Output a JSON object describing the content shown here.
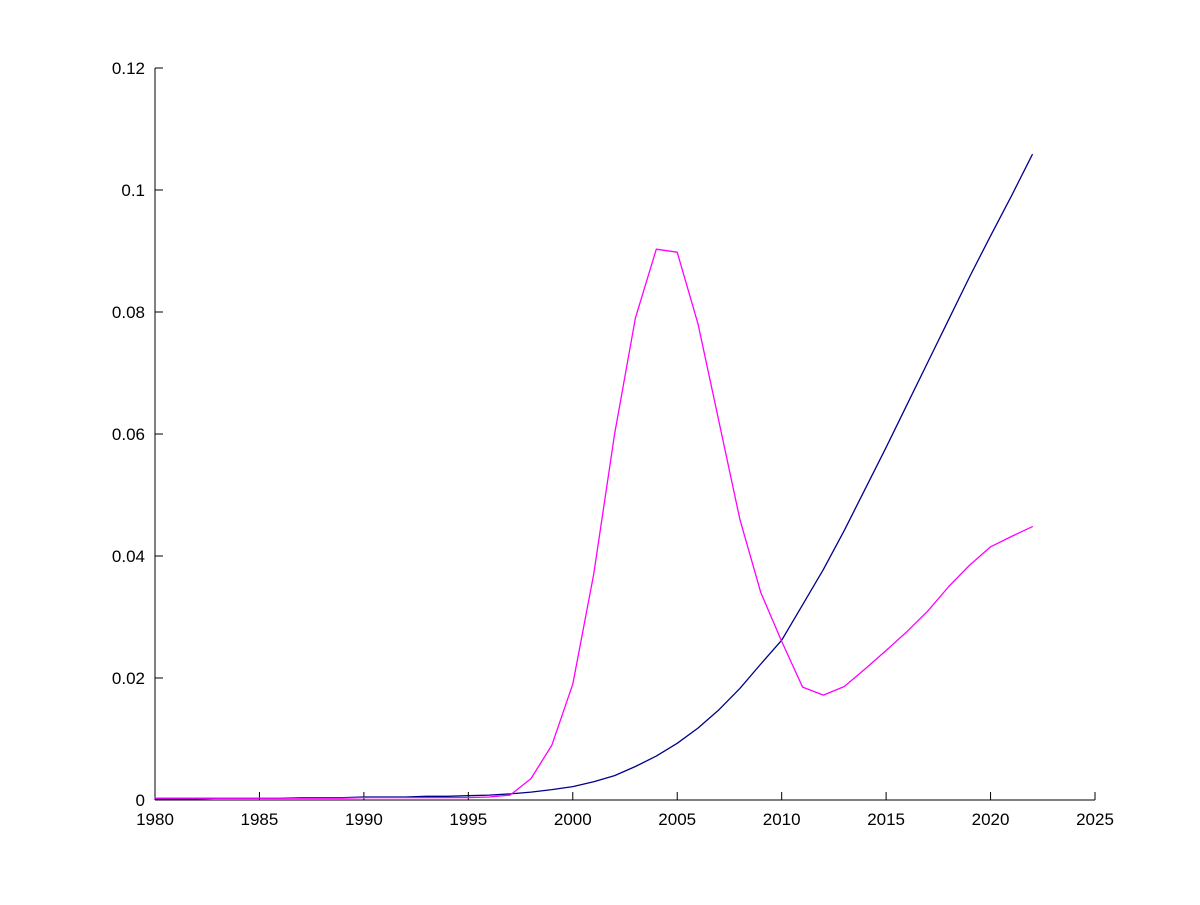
{
  "figure": {
    "background": "#ffffff",
    "axis_color": "#000000"
  },
  "chart_data": {
    "type": "line",
    "title": "",
    "xlabel": "",
    "ylabel": "",
    "grid": false,
    "legend": null,
    "xlim": [
      1980,
      2025
    ],
    "ylim": [
      0,
      0.12
    ],
    "xticks": [
      1980,
      1985,
      1990,
      1995,
      2000,
      2005,
      2010,
      2015,
      2020,
      2025
    ],
    "xtick_labels": [
      "1980",
      "1985",
      "1990",
      "1995",
      "2000",
      "2005",
      "2010",
      "2015",
      "2020",
      "2025"
    ],
    "yticks": [
      0,
      0.02,
      0.04,
      0.06,
      0.08,
      0.1,
      0.12
    ],
    "ytick_labels": [
      "0",
      "0.02",
      "0.04",
      "0.06",
      "0.08",
      "0.1",
      "0.12"
    ],
    "x": [
      1980,
      1981,
      1982,
      1983,
      1984,
      1985,
      1986,
      1987,
      1988,
      1989,
      1990,
      1991,
      1992,
      1993,
      1994,
      1995,
      1996,
      1997,
      1998,
      1999,
      2000,
      2001,
      2002,
      2003,
      2004,
      2005,
      2006,
      2007,
      2008,
      2009,
      2010,
      2011,
      2012,
      2013,
      2014,
      2015,
      2016,
      2017,
      2018,
      2019,
      2020,
      2021,
      2022
    ],
    "series": [
      {
        "name": "blue",
        "color": "#00008B",
        "values": [
          0.0002,
          0.0002,
          0.0002,
          0.0003,
          0.0003,
          0.0003,
          0.0003,
          0.0004,
          0.0004,
          0.0004,
          0.0005,
          0.0005,
          0.0005,
          0.0006,
          0.0006,
          0.0007,
          0.0008,
          0.001,
          0.0013,
          0.0017,
          0.0022,
          0.003,
          0.004,
          0.0055,
          0.0072,
          0.0093,
          0.0118,
          0.0148,
          0.0183,
          0.0223,
          0.0262,
          0.032,
          0.0378,
          0.0442,
          0.051,
          0.0578,
          0.0648,
          0.0718,
          0.0788,
          0.0858,
          0.0925,
          0.099,
          0.1058
        ]
      },
      {
        "name": "magenta",
        "color": "#FF00FF",
        "values": [
          0.0003,
          0.0003,
          0.0003,
          0.0003,
          0.0003,
          0.0003,
          0.0003,
          0.0003,
          0.0003,
          0.0003,
          0.0004,
          0.0004,
          0.0004,
          0.0004,
          0.0004,
          0.0004,
          0.0005,
          0.0008,
          0.0035,
          0.009,
          0.019,
          0.037,
          0.06,
          0.079,
          0.0903,
          0.0898,
          0.078,
          0.062,
          0.046,
          0.034,
          0.026,
          0.0185,
          0.0172,
          0.0186,
          0.0215,
          0.0245,
          0.0276,
          0.031,
          0.035,
          0.0385,
          0.0415,
          0.0432,
          0.0448
        ]
      }
    ]
  }
}
